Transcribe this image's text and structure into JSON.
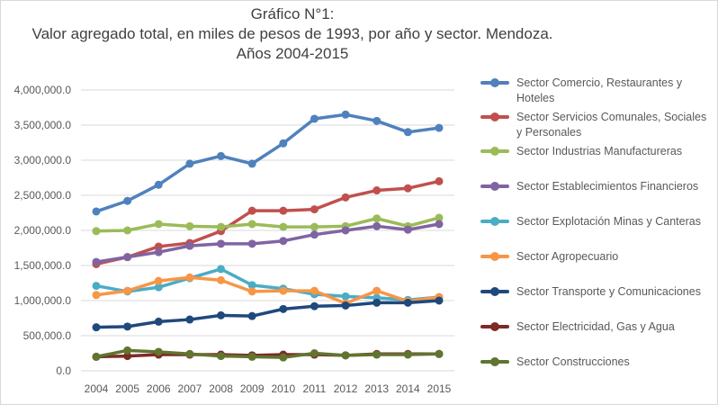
{
  "chart_data": {
    "type": "line",
    "title": [
      "Gráfico N°1:",
      "Valor agregado total, en miles de pesos de 1993, por año y sector. Mendoza.",
      "Años 2004-2015"
    ],
    "xlabel": "",
    "ylabel": "",
    "x": [
      "2004",
      "2005",
      "2006",
      "2007",
      "2008",
      "2009",
      "2010",
      "2011",
      "2012",
      "2013",
      "2014",
      "2015"
    ],
    "ylim": [
      0,
      4000000
    ],
    "yticks": [
      "0.0",
      "500,000.0",
      "1,000,000.0",
      "1,500,000.0",
      "2,000,000.0",
      "2,500,000.0",
      "3,000,000.0",
      "3,500,000.0",
      "4,000,000.0"
    ],
    "grid": true,
    "legend_position": "right",
    "series": [
      {
        "name": "Sector Comercio, Restaurantes y Hoteles",
        "color": "#4f81bd",
        "values": [
          2270000,
          2420000,
          2650000,
          2950000,
          3060000,
          2950000,
          3240000,
          3590000,
          3650000,
          3560000,
          3400000,
          3460000
        ]
      },
      {
        "name": "Sector Servicios Comunales, Sociales y Personales",
        "color": "#c0504d",
        "values": [
          1520000,
          1620000,
          1770000,
          1820000,
          1990000,
          2280000,
          2280000,
          2300000,
          2470000,
          2570000,
          2600000,
          2700000
        ]
      },
      {
        "name": "Sector Industrias Manufactureras",
        "color": "#9bbb59",
        "values": [
          1990000,
          2000000,
          2090000,
          2060000,
          2050000,
          2090000,
          2050000,
          2050000,
          2060000,
          2170000,
          2060000,
          2180000
        ]
      },
      {
        "name": "Sector Establecimientos Financieros",
        "color": "#8064a2",
        "values": [
          1550000,
          1620000,
          1690000,
          1780000,
          1810000,
          1810000,
          1850000,
          1940000,
          2000000,
          2060000,
          2010000,
          2090000
        ]
      },
      {
        "name": "Sector Explotación Minas y Canteras",
        "color": "#4bacc6",
        "values": [
          1210000,
          1130000,
          1190000,
          1320000,
          1450000,
          1220000,
          1170000,
          1090000,
          1060000,
          1040000,
          1010000,
          1050000
        ]
      },
      {
        "name": "Sector Agropecuario",
        "color": "#f79646",
        "values": [
          1080000,
          1140000,
          1280000,
          1330000,
          1290000,
          1130000,
          1140000,
          1140000,
          960000,
          1140000,
          990000,
          1050000
        ]
      },
      {
        "name": "Sector Transporte y Comunicaciones",
        "color": "#1f497d",
        "values": [
          620000,
          630000,
          700000,
          730000,
          790000,
          780000,
          880000,
          920000,
          930000,
          970000,
          970000,
          1000000
        ]
      },
      {
        "name": "Sector Electricidad, Gas y Agua",
        "color": "#7f2a25",
        "values": [
          200000,
          210000,
          230000,
          230000,
          230000,
          220000,
          230000,
          230000,
          220000,
          240000,
          240000,
          240000
        ]
      },
      {
        "name": "Sector Construcciones",
        "color": "#5f7530",
        "values": [
          200000,
          290000,
          270000,
          240000,
          210000,
          200000,
          190000,
          250000,
          220000,
          230000,
          230000,
          240000
        ]
      }
    ]
  }
}
